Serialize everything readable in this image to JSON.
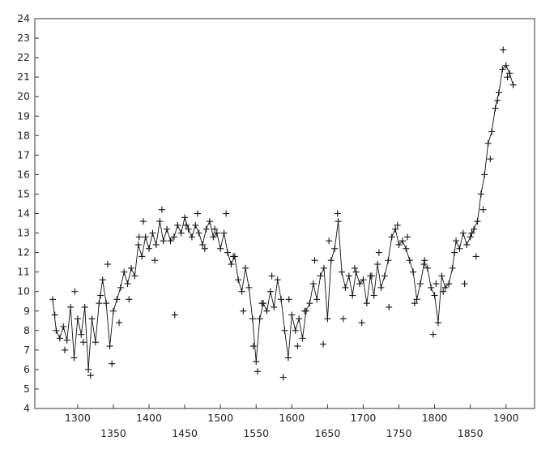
{
  "chart_data": {
    "type": "line",
    "title": "",
    "xlabel": "",
    "ylabel": "",
    "xlim": [
      1240,
      1940
    ],
    "ylim": [
      4,
      24
    ],
    "grid": false,
    "marker": "plus",
    "colors": {
      "line": "#111111",
      "frame": "#333333",
      "background": "#ffffff"
    },
    "x_ticks": {
      "lower_row": [
        "1300",
        "1400",
        "1500",
        "1600",
        "1700",
        "1800",
        "1900"
      ],
      "upper_row": [
        "1350",
        "1450",
        "1550",
        "1650",
        "1750",
        "1850"
      ]
    },
    "x_tick_values": [
      1300,
      1350,
      1400,
      1450,
      1500,
      1550,
      1600,
      1650,
      1700,
      1750,
      1800,
      1850,
      1900
    ],
    "y_ticks": [
      "24",
      "23",
      "22",
      "21",
      "20",
      "19",
      "18",
      "17",
      "16",
      "15",
      "14",
      "13",
      "12",
      "11",
      "10",
      "9",
      "8",
      "7",
      "6",
      "5",
      "4"
    ],
    "y_tick_values": [
      24,
      23,
      22,
      21,
      20,
      19,
      18,
      17,
      16,
      15,
      14,
      13,
      12,
      11,
      10,
      9,
      8,
      7,
      6,
      5,
      4
    ],
    "series": [
      {
        "x": [
          1265,
          1270,
          1275,
          1280,
          1285,
          1290,
          1295,
          1300,
          1305,
          1310,
          1315,
          1320,
          1325,
          1330,
          1335,
          1340,
          1345,
          1350,
          1355,
          1360,
          1365,
          1370,
          1375,
          1380,
          1385,
          1390,
          1395,
          1400,
          1405,
          1410,
          1415,
          1420,
          1425,
          1430,
          1435,
          1440,
          1445,
          1450,
          1455,
          1460,
          1465,
          1470,
          1475,
          1480,
          1485,
          1490,
          1495,
          1500,
          1505,
          1510,
          1515,
          1520,
          1525,
          1530,
          1535,
          1540,
          1545,
          1550,
          1555,
          1560,
          1565,
          1570,
          1575,
          1580,
          1585,
          1590,
          1595,
          1600,
          1605,
          1610,
          1615,
          1620,
          1625,
          1630,
          1635,
          1640,
          1645,
          1650,
          1655,
          1660,
          1665,
          1670,
          1675,
          1680,
          1685,
          1690,
          1695,
          1700,
          1705,
          1710,
          1715,
          1720,
          1725,
          1730,
          1735,
          1740,
          1745,
          1750,
          1755,
          1760,
          1765,
          1770,
          1775,
          1780,
          1785,
          1790,
          1795,
          1800,
          1805,
          1810,
          1815,
          1820,
          1825,
          1830,
          1835,
          1840,
          1845,
          1850,
          1855,
          1860,
          1865,
          1870,
          1875,
          1880,
          1885,
          1890,
          1895,
          1900,
          1905,
          1910
        ],
        "y": [
          9.6,
          8.0,
          7.6,
          8.2,
          7.5,
          9.2,
          6.6,
          8.6,
          7.8,
          9.2,
          6.0,
          8.6,
          7.4,
          9.4,
          10.6,
          9.4,
          7.2,
          9.0,
          9.6,
          10.2,
          11.0,
          10.4,
          11.2,
          10.8,
          12.4,
          11.8,
          12.8,
          12.2,
          13.0,
          12.4,
          13.6,
          12.6,
          13.2,
          12.6,
          12.8,
          13.4,
          13.0,
          13.8,
          13.2,
          12.8,
          13.4,
          13.0,
          12.4,
          13.2,
          13.6,
          12.8,
          13.0,
          12.2,
          13.0,
          12.0,
          11.4,
          11.8,
          10.6,
          10.0,
          11.2,
          10.2,
          8.6,
          6.4,
          8.6,
          9.4,
          9.0,
          10.0,
          9.2,
          10.6,
          9.6,
          8.0,
          6.6,
          8.8,
          8.0,
          8.6,
          7.6,
          9.0,
          9.4,
          10.4,
          9.6,
          10.8,
          11.2,
          8.6,
          11.6,
          12.2,
          13.6,
          11.0,
          10.2,
          10.8,
          9.8,
          11.0,
          10.4,
          10.6,
          9.4,
          10.8,
          9.8,
          11.4,
          10.2,
          10.8,
          11.6,
          12.8,
          13.2,
          12.4,
          12.6,
          12.2,
          11.6,
          11.0,
          9.6,
          10.4,
          11.4,
          11.2,
          10.2,
          9.8,
          8.4,
          10.8,
          10.2,
          10.4,
          11.2,
          12.6,
          12.2,
          13.0,
          12.4,
          12.8,
          13.2,
          13.6,
          15.0,
          16.0,
          17.6,
          18.2,
          19.4,
          20.2,
          21.4,
          21.6,
          21.2,
          20.6
        ],
        "extra_markers": {
          "x": [
            1268,
            1282,
            1296,
            1308,
            1318,
            1332,
            1342,
            1348,
            1358,
            1372,
            1386,
            1392,
            1408,
            1418,
            1436,
            1452,
            1468,
            1478,
            1492,
            1508,
            1518,
            1532,
            1546,
            1552,
            1558,
            1572,
            1588,
            1596,
            1608,
            1618,
            1632,
            1644,
            1652,
            1664,
            1672,
            1688,
            1698,
            1712,
            1722,
            1736,
            1748,
            1762,
            1772,
            1786,
            1798,
            1802,
            1812,
            1828,
            1842,
            1852,
            1858,
            1868,
            1878,
            1888,
            1896,
            1902
          ],
          "y": [
            8.8,
            7.0,
            10.0,
            7.4,
            5.7,
            9.8,
            11.4,
            6.3,
            8.4,
            9.6,
            12.8,
            13.6,
            11.6,
            14.2,
            8.8,
            13.4,
            14.0,
            12.2,
            13.2,
            14.0,
            11.8,
            9.0,
            7.2,
            5.9,
            9.4,
            10.8,
            5.6,
            9.6,
            7.2,
            9.0,
            11.6,
            7.3,
            12.6,
            14.0,
            8.6,
            11.2,
            8.4,
            10.8,
            12.0,
            9.2,
            13.4,
            12.8,
            9.4,
            11.6,
            7.8,
            10.4,
            10.0,
            12.0,
            10.4,
            13.0,
            11.8,
            14.2,
            16.8,
            19.8,
            22.4,
            21.0
          ]
        }
      }
    ]
  }
}
